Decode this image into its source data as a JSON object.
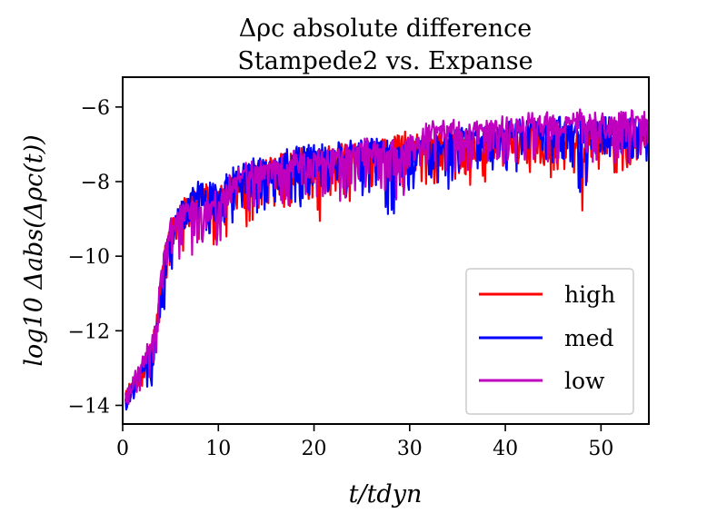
{
  "chart_data": {
    "type": "line",
    "title": "Δρc absolute difference",
    "subtitle": "Stampede2 vs. Expanse",
    "xlabel": "t/tdyn",
    "ylabel": "log10 Δabs(Δρc(t))",
    "xlim": [
      0,
      55
    ],
    "ylim": [
      -14.5,
      -5.2
    ],
    "xticks": [
      "0",
      "10",
      "20",
      "30",
      "40",
      "50"
    ],
    "yticks": [
      "−6",
      "−8",
      "−10",
      "−12",
      "−14"
    ],
    "legend_position": "lower-right",
    "series": [
      {
        "name": "high",
        "color": "#ff0000",
        "x": [
          0.3,
          1,
          2,
          3,
          3.5,
          4,
          4.5,
          5,
          6,
          7,
          8,
          9,
          10,
          11,
          12,
          13,
          14,
          15,
          16,
          17,
          18,
          19,
          20,
          21,
          22,
          23,
          24,
          25,
          26,
          27,
          28,
          29,
          30,
          31,
          32,
          33,
          34,
          35,
          36,
          37,
          38,
          39,
          40,
          41,
          42,
          43,
          44,
          45,
          46,
          47,
          48,
          49,
          50,
          51,
          52,
          53,
          54,
          55
        ],
        "base": [
          -13.8,
          -13.4,
          -13.0,
          -12.4,
          -11.8,
          -10.6,
          -9.7,
          -9.2,
          -8.8,
          -8.4,
          -8.2,
          -8.2,
          -8.3,
          -8.0,
          -7.8,
          -7.6,
          -7.5,
          -7.4,
          -7.4,
          -7.3,
          -7.3,
          -7.2,
          -7.2,
          -7.1,
          -7.2,
          -7.1,
          -7.1,
          -7.2,
          -7.1,
          -7.0,
          -6.9,
          -6.8,
          -6.8,
          -6.9,
          -7.0,
          -6.8,
          -6.8,
          -6.8,
          -6.8,
          -6.8,
          -6.7,
          -6.8,
          -6.7,
          -6.8,
          -6.7,
          -6.6,
          -6.7,
          -6.6,
          -6.6,
          -6.6,
          -6.7,
          -6.6,
          -6.7,
          -6.6,
          -6.7,
          -6.7,
          -6.6,
          -6.6
        ],
        "amp": [
          0.3,
          0.4,
          0.6,
          0.8,
          1.2,
          1.3,
          1.2,
          1.3,
          1.4,
          1.3,
          1.5,
          1.6,
          1.5,
          1.5,
          1.5,
          1.5,
          1.6,
          1.4,
          1.5,
          1.5,
          1.5,
          1.4,
          1.7,
          2.4,
          1.4,
          1.5,
          1.5,
          1.4,
          1.5,
          1.3,
          1.4,
          1.5,
          1.3,
          1.2,
          1.1,
          1.3,
          1.2,
          1.3,
          1.3,
          1.2,
          1.3,
          1.2,
          1.2,
          1.3,
          1.2,
          1.2,
          1.3,
          1.2,
          1.3,
          1.3,
          2.6,
          1.1,
          1.2,
          1.1,
          1.2,
          1.1,
          1.0,
          1.1
        ]
      },
      {
        "name": "med",
        "color": "#0000ff",
        "x": [
          0.3,
          1,
          2,
          3,
          3.5,
          4,
          4.5,
          5,
          6,
          7,
          8,
          9,
          10,
          11,
          12,
          13,
          14,
          15,
          16,
          17,
          18,
          19,
          20,
          21,
          22,
          23,
          24,
          25,
          26,
          27,
          28,
          29,
          30,
          31,
          32,
          33,
          34,
          35,
          36,
          37,
          38,
          39,
          40,
          41,
          42,
          43,
          44,
          45,
          46,
          47,
          48,
          49,
          50,
          51,
          52,
          53,
          54,
          55
        ],
        "base": [
          -14.0,
          -13.5,
          -13.0,
          -12.5,
          -11.9,
          -10.8,
          -9.9,
          -9.3,
          -8.7,
          -8.4,
          -8.1,
          -8.1,
          -8.1,
          -7.9,
          -7.7,
          -7.6,
          -7.5,
          -7.5,
          -7.4,
          -7.3,
          -7.2,
          -7.2,
          -7.1,
          -7.1,
          -7.1,
          -7.1,
          -7.0,
          -7.0,
          -7.0,
          -6.9,
          -7.1,
          -7.0,
          -7.0,
          -6.9,
          -6.9,
          -6.9,
          -6.8,
          -6.7,
          -6.7,
          -6.7,
          -6.6,
          -6.6,
          -6.5,
          -6.5,
          -6.5,
          -6.5,
          -6.5,
          -6.4,
          -6.4,
          -6.5,
          -6.4,
          -6.4,
          -6.4,
          -6.4,
          -6.4,
          -6.4,
          -6.4,
          -6.5
        ],
        "amp": [
          0.3,
          0.4,
          0.6,
          0.9,
          1.3,
          1.3,
          1.2,
          1.3,
          1.3,
          1.3,
          1.3,
          1.4,
          1.4,
          1.3,
          1.3,
          1.4,
          1.4,
          1.4,
          1.4,
          1.5,
          1.5,
          1.4,
          1.4,
          1.4,
          1.3,
          1.4,
          1.4,
          1.3,
          1.3,
          1.3,
          3.3,
          1.3,
          1.3,
          1.3,
          1.3,
          1.2,
          1.3,
          1.2,
          1.2,
          1.2,
          1.3,
          1.2,
          1.2,
          1.1,
          1.2,
          1.2,
          1.2,
          1.2,
          1.1,
          1.3,
          2.1,
          1.2,
          1.1,
          1.1,
          1.2,
          1.1,
          1.1,
          1.0
        ]
      },
      {
        "name": "low",
        "color": "#bf00bf",
        "x": [
          0.3,
          1,
          2,
          3,
          3.5,
          4,
          4.5,
          5,
          6,
          7,
          8,
          9,
          10,
          11,
          12,
          13,
          14,
          15,
          16,
          17,
          18,
          19,
          20,
          21,
          22,
          23,
          24,
          25,
          26,
          27,
          28,
          29,
          30,
          31,
          32,
          33,
          34,
          35,
          36,
          37,
          38,
          39,
          40,
          41,
          42,
          43,
          44,
          45,
          46,
          47,
          48,
          49,
          50,
          51,
          52,
          53,
          54,
          55
        ],
        "base": [
          -13.7,
          -13.3,
          -12.8,
          -12.3,
          -11.6,
          -10.4,
          -9.5,
          -9.1,
          -8.8,
          -8.6,
          -8.6,
          -8.5,
          -8.4,
          -8.0,
          -7.8,
          -7.6,
          -7.6,
          -7.5,
          -7.4,
          -7.4,
          -7.3,
          -7.3,
          -7.3,
          -7.2,
          -7.2,
          -7.2,
          -7.1,
          -7.0,
          -7.0,
          -7.0,
          -7.0,
          -7.0,
          -6.9,
          -6.8,
          -6.5,
          -6.5,
          -6.5,
          -6.5,
          -6.5,
          -6.5,
          -6.5,
          -6.4,
          -6.4,
          -6.4,
          -6.3,
          -6.3,
          -6.3,
          -6.3,
          -6.3,
          -6.3,
          -6.1,
          -6.2,
          -6.3,
          -6.3,
          -6.3,
          -6.2,
          -6.2,
          -6.2
        ],
        "amp": [
          0.3,
          0.4,
          0.6,
          0.9,
          1.3,
          1.2,
          1.2,
          1.2,
          1.3,
          1.2,
          1.3,
          1.2,
          1.2,
          1.3,
          1.4,
          1.3,
          1.4,
          1.4,
          1.4,
          1.5,
          1.4,
          1.4,
          1.4,
          1.4,
          1.4,
          1.5,
          1.4,
          1.3,
          1.3,
          1.4,
          1.6,
          1.3,
          1.3,
          1.3,
          1.2,
          1.2,
          1.3,
          1.2,
          1.2,
          1.3,
          1.2,
          1.2,
          1.3,
          1.2,
          1.2,
          1.2,
          1.3,
          1.2,
          1.2,
          1.2,
          1.1,
          1.2,
          1.2,
          1.2,
          1.2,
          1.2,
          1.2,
          1.1
        ]
      }
    ]
  }
}
